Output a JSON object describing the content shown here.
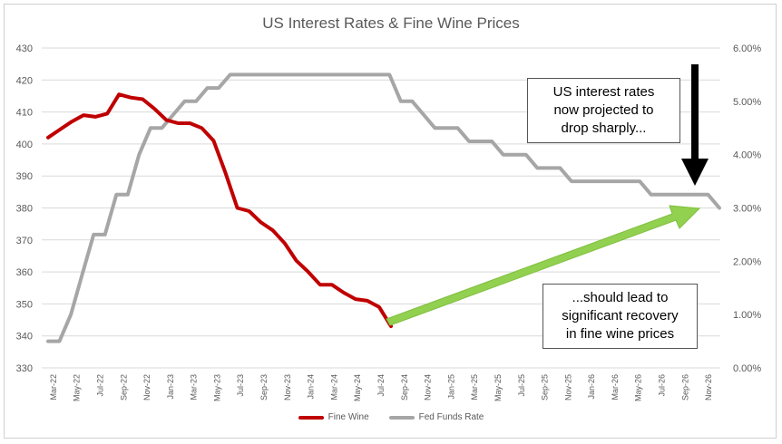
{
  "chart_data": {
    "type": "line",
    "title": "US Interest Rates & Fine Wine Prices",
    "x_labels": [
      "Mar-22",
      "May-22",
      "Jul-22",
      "Sep-22",
      "Nov-22",
      "Jan-23",
      "Mar-23",
      "May-23",
      "Jul-23",
      "Sep-23",
      "Nov-23",
      "Jan-24",
      "Mar-24",
      "May-24",
      "Jul-24",
      "Sep-24",
      "Nov-24",
      "Jan-25",
      "Mar-25",
      "May-25",
      "Jul-25",
      "Sep-25",
      "Nov-25",
      "Jan-26",
      "Mar-26",
      "May-26",
      "Jul-26",
      "Sep-26",
      "Nov-26"
    ],
    "y_left": {
      "min": 330,
      "max": 430,
      "ticks": [
        "330",
        "340",
        "350",
        "360",
        "370",
        "380",
        "390",
        "400",
        "410",
        "420",
        "430"
      ]
    },
    "y_right": {
      "min": 0,
      "max": 6,
      "ticks": [
        "0.00%",
        "1.00%",
        "2.00%",
        "3.00%",
        "4.00%",
        "5.00%",
        "6.00%"
      ]
    },
    "grid": true,
    "legend_position": "bottom",
    "series": [
      {
        "name": "Fine Wine",
        "axis": "left",
        "color": "#c00000",
        "values": [
          402,
          404.5,
          407,
          409,
          408.5,
          409.5,
          415.5,
          414.5,
          414,
          411,
          407.5,
          406.5,
          406.5,
          405,
          401,
          391,
          380,
          379,
          375.5,
          373,
          369,
          363.5,
          360,
          356,
          356,
          353.5,
          351.5,
          351,
          349,
          343
        ]
      },
      {
        "name": "Fed Funds Rate",
        "axis": "right",
        "color": "#a6a6a6",
        "values": [
          0.5,
          0.5,
          1,
          1.75,
          2.5,
          2.5,
          3.25,
          3.25,
          4,
          4.5,
          4.5,
          4.75,
          5,
          5,
          5.25,
          5.25,
          5.5,
          5.5,
          5.5,
          5.5,
          5.5,
          5.5,
          5.5,
          5.5,
          5.5,
          5.5,
          5.5,
          5.5,
          5.5,
          5.5,
          5.5,
          5,
          5,
          4.75,
          4.5,
          4.5,
          4.5,
          4.25,
          4.25,
          4.25,
          4,
          4,
          4,
          3.75,
          3.75,
          3.75,
          3.5,
          3.5,
          3.5,
          3.5,
          3.5,
          3.5,
          3.5,
          3.25,
          3.25,
          3.25,
          3.25,
          3.25,
          3.25,
          3
        ]
      }
    ],
    "annotations": [
      {
        "text": "US interest rates\nnow projected to\ndrop sharply...",
        "arrow_color": "#000000"
      },
      {
        "text": "...should lead to\nsignificant recovery\nin fine wine prices",
        "arrow_color": "#92d050"
      }
    ]
  }
}
